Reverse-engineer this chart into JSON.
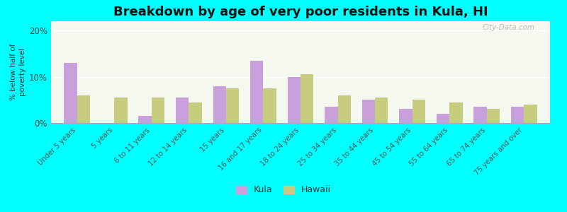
{
  "title": "Breakdown by age of very poor residents in Kula, HI",
  "ylabel": "% below half of\npoverty level",
  "categories": [
    "Under 5 years",
    "5 years",
    "6 to 11 years",
    "12 to 14 years",
    "15 years",
    "16 and 17 years",
    "18 to 24 years",
    "25 to 34 years",
    "35 to 44 years",
    "45 to 54 years",
    "55 to 64 years",
    "65 to 74 years",
    "75 years and over"
  ],
  "kula_values": [
    13.0,
    0.0,
    1.5,
    5.5,
    8.0,
    13.5,
    10.0,
    3.5,
    5.0,
    3.0,
    2.0,
    3.5,
    3.5
  ],
  "hawaii_values": [
    6.0,
    5.5,
    5.5,
    4.5,
    7.5,
    7.5,
    10.5,
    6.0,
    5.5,
    5.0,
    4.5,
    3.0,
    4.0
  ],
  "kula_color": "#c9a0dc",
  "hawaii_color": "#c8cc7e",
  "background_color": "#00ffff",
  "plot_bg": "#f5f8ee",
  "ylim": [
    0,
    22
  ],
  "yticks": [
    0,
    10,
    20
  ],
  "ytick_labels": [
    "0%",
    "10%",
    "20%"
  ],
  "legend_kula": "Kula",
  "legend_hawaii": "Hawaii",
  "title_fontsize": 13,
  "bar_width": 0.35
}
